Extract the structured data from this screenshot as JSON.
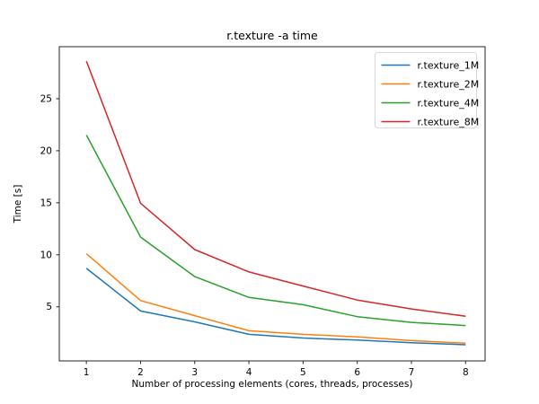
{
  "chart_data": {
    "type": "line",
    "title": "r.texture -a time",
    "xlabel": "Number of processing elements (cores, threads, processes)",
    "ylabel": "Time [s]",
    "x": [
      1,
      2,
      3,
      4,
      5,
      6,
      7,
      8
    ],
    "series": [
      {
        "name": "r.texture_1M",
        "color": "#1f77b4",
        "values": [
          8.7,
          4.6,
          3.55,
          2.35,
          2.0,
          1.8,
          1.55,
          1.35
        ]
      },
      {
        "name": "r.texture_2M",
        "color": "#ff7f0e",
        "values": [
          10.1,
          5.6,
          4.15,
          2.7,
          2.35,
          2.1,
          1.75,
          1.5
        ]
      },
      {
        "name": "r.texture_4M",
        "color": "#2ca02c",
        "values": [
          21.5,
          11.7,
          7.9,
          5.9,
          5.2,
          4.05,
          3.5,
          3.2
        ]
      },
      {
        "name": "r.texture_8M",
        "color": "#d62728",
        "values": [
          28.6,
          14.95,
          10.5,
          8.35,
          7.0,
          5.65,
          4.8,
          4.1
        ]
      }
    ],
    "xticks": [
      1,
      2,
      3,
      4,
      5,
      6,
      7,
      8
    ],
    "yticks": [
      5,
      10,
      15,
      20,
      25
    ],
    "xlim": [
      0.5,
      8.36
    ],
    "ylim": [
      -0.2,
      30.0
    ],
    "grid": false,
    "legend_position": "upper right",
    "axis_color": "#262626",
    "legend_border_color": "#d9d9d9",
    "background_color": "#ffffff"
  }
}
